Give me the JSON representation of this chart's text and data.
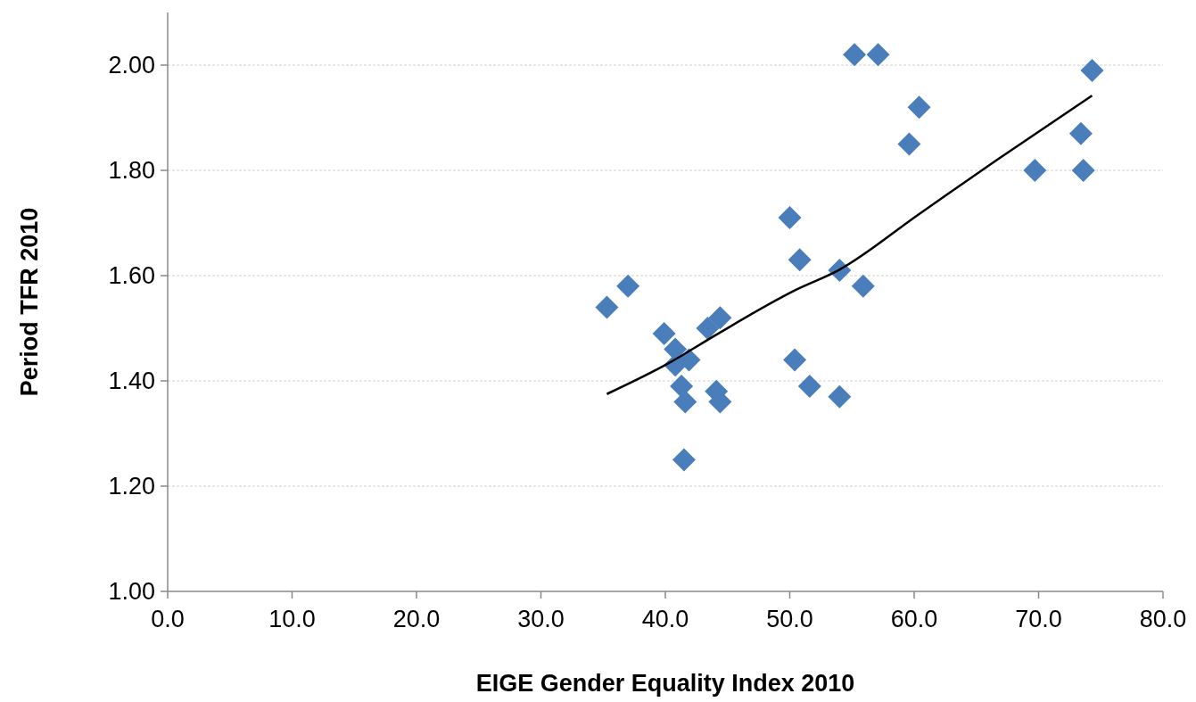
{
  "chart_data": {
    "type": "scatter",
    "xlabel": "EIGE Gender Equality Index 2010",
    "ylabel": "Period TFR 2010",
    "xlim": [
      0,
      80
    ],
    "ylim": [
      1,
      2.1
    ],
    "xticks": [
      {
        "value": 0,
        "label": "0.0"
      },
      {
        "value": 10,
        "label": "10.0"
      },
      {
        "value": 20,
        "label": "20.0"
      },
      {
        "value": 30,
        "label": "30.0"
      },
      {
        "value": 40,
        "label": "40.0"
      },
      {
        "value": 50,
        "label": "50.0"
      },
      {
        "value": 60,
        "label": "60.0"
      },
      {
        "value": 70,
        "label": "70.0"
      },
      {
        "value": 80,
        "label": "80.0"
      }
    ],
    "yticks": [
      {
        "value": 1,
        "label": "1.00"
      },
      {
        "value": 1.2,
        "label": "1.20"
      },
      {
        "value": 1.4,
        "label": "1.40"
      },
      {
        "value": 1.6,
        "label": "1.60"
      },
      {
        "value": 1.8,
        "label": "1.80"
      },
      {
        "value": 2,
        "label": "2.00"
      }
    ],
    "grid": "y",
    "marker": "diamond",
    "series": [
      {
        "color": "#4a7ebb",
        "x": [
          35.3,
          37.0,
          39.9,
          40.8,
          41.9,
          40.8,
          41.3,
          41.6,
          41.5,
          43.4,
          44.4,
          44.1,
          44.4,
          50.0,
          50.8,
          50.4,
          51.6,
          54.0,
          54.0,
          55.9,
          55.2,
          57.1,
          60.4,
          59.6,
          69.7,
          73.4,
          73.6,
          74.3
        ],
        "values": [
          1.54,
          1.58,
          1.49,
          1.46,
          1.44,
          1.43,
          1.39,
          1.36,
          1.25,
          1.5,
          1.52,
          1.38,
          1.36,
          1.71,
          1.63,
          1.44,
          1.39,
          1.61,
          1.37,
          1.58,
          2.02,
          2.02,
          1.92,
          1.85,
          1.8,
          1.87,
          1.8,
          1.99
        ]
      },
      {
        "type": "line",
        "color": "#000000",
        "marker": "none",
        "line_style": "solid",
        "x": [
          35.3,
          40.3,
          43.9,
          50.5,
          53.9,
          60.4,
          66.6,
          74.3
        ],
        "values": [
          1.375,
          1.434,
          1.485,
          1.573,
          1.61,
          1.717,
          1.819,
          1.942
        ]
      }
    ]
  }
}
